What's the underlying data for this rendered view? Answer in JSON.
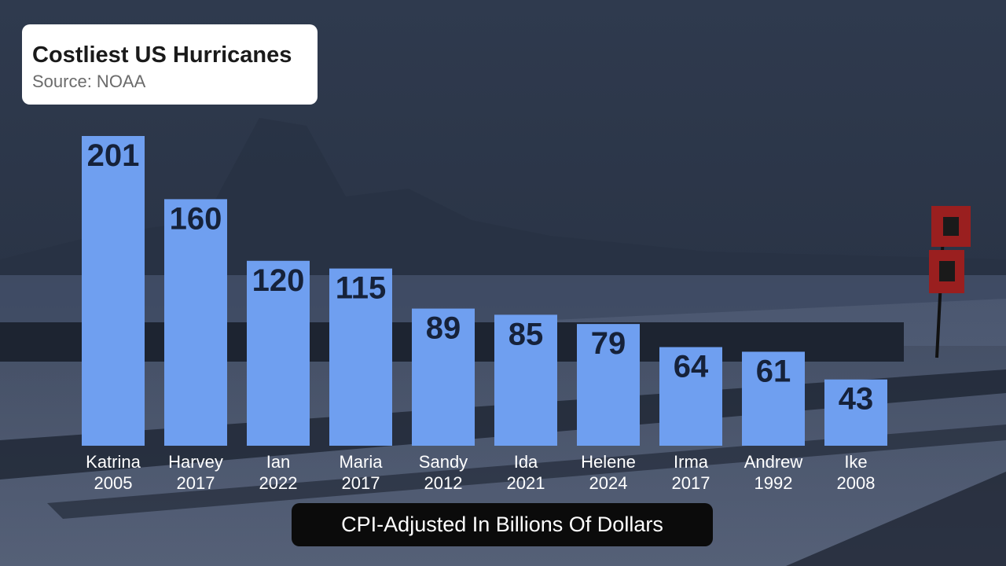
{
  "header": {
    "title": "Costliest US Hurricanes",
    "source": "Source: NOAA"
  },
  "unit_label": "CPI-Adjusted In Billions Of Dollars",
  "colors": {
    "bar": "#6f9ff0",
    "value_text": "#16223a",
    "category_text": "#ffffff",
    "background": "#2a3447"
  },
  "chart_data": {
    "type": "bar",
    "title": "Costliest US Hurricanes",
    "subtitle": "Source: NOAA",
    "ylabel": "CPI-Adjusted In Billions Of Dollars",
    "ylim": [
      0,
      201
    ],
    "grid": false,
    "categories": [
      {
        "name": "Katrina",
        "year": "2005"
      },
      {
        "name": "Harvey",
        "year": "2017"
      },
      {
        "name": "Ian",
        "year": "2022"
      },
      {
        "name": "Maria",
        "year": "2017"
      },
      {
        "name": "Sandy",
        "year": "2012"
      },
      {
        "name": "Ida",
        "year": "2021"
      },
      {
        "name": "Helene",
        "year": "2024"
      },
      {
        "name": "Irma",
        "year": "2017"
      },
      {
        "name": "Andrew",
        "year": "1992"
      },
      {
        "name": "Ike",
        "year": "2008"
      }
    ],
    "values": [
      201,
      160,
      120,
      115,
      89,
      85,
      79,
      64,
      61,
      43
    ]
  }
}
